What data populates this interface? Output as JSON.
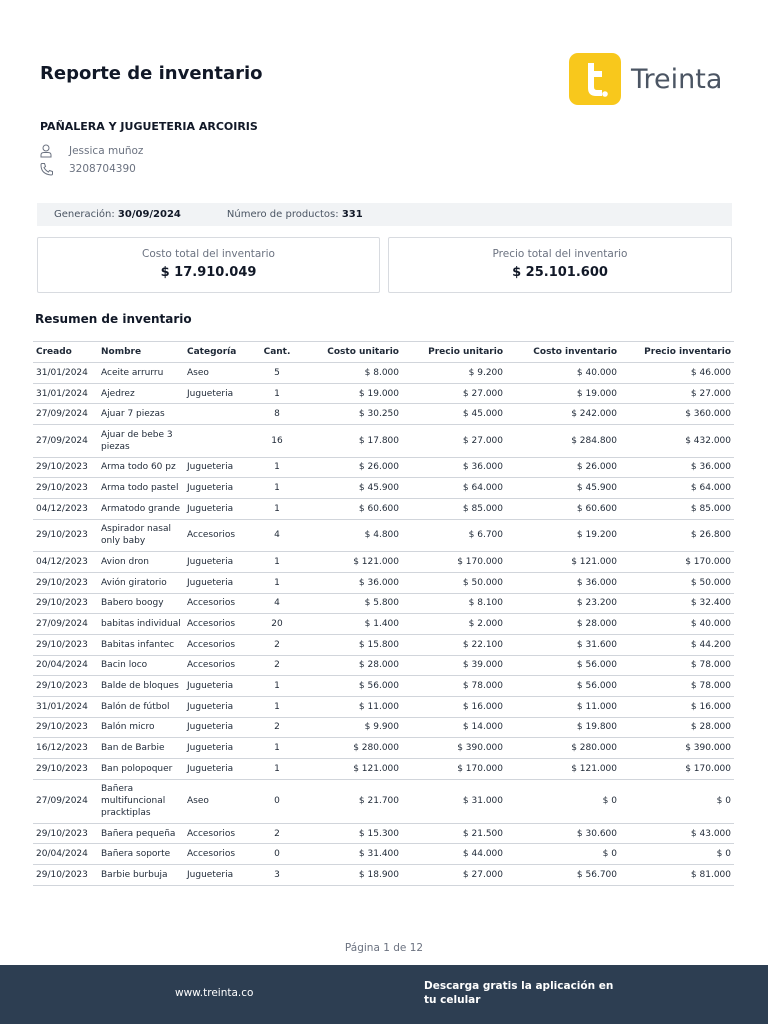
{
  "header": {
    "title": "Reporte de inventario",
    "logo_text": "Treinta",
    "brand_color": "#f8c81c"
  },
  "store": {
    "name": "PAÑALERA Y JUGUETERIA ARCOIRIS",
    "owner": "Jessica muñoz",
    "phone": "3208704390",
    "owner_icon": "user-icon",
    "phone_icon": "phone-icon"
  },
  "summary_bar": {
    "generation_label": "Generación:",
    "generation_value": "30/09/2024",
    "products_label": "Número de productos:",
    "products_value": "331"
  },
  "cards": {
    "cost_label": "Costo total del inventario",
    "cost_value": "$ 17.910.049",
    "price_label": "Precio total del inventario",
    "price_value": "$ 25.101.600"
  },
  "section_title": "Resumen de inventario",
  "table": {
    "headers": [
      "Creado",
      "Nombre",
      "Categoría",
      "Cant.",
      "Costo unitario",
      "Precio unitario",
      "Costo inventario",
      "Precio inventario"
    ],
    "rows": [
      [
        "31/01/2024",
        "Aceite arrurru",
        "Aseo",
        "5",
        "$ 8.000",
        "$ 9.200",
        "$ 40.000",
        "$ 46.000"
      ],
      [
        "31/01/2024",
        "Ajedrez",
        "Jugueteria",
        "1",
        "$ 19.000",
        "$ 27.000",
        "$ 19.000",
        "$ 27.000"
      ],
      [
        "27/09/2024",
        "Ajuar 7 piezas",
        "",
        "8",
        "$ 30.250",
        "$ 45.000",
        "$ 242.000",
        "$ 360.000"
      ],
      [
        "27/09/2024",
        "Ajuar de bebe 3 piezas",
        "",
        "16",
        "$ 17.800",
        "$ 27.000",
        "$ 284.800",
        "$ 432.000"
      ],
      [
        "29/10/2023",
        "Arma todo 60 pz",
        "Jugueteria",
        "1",
        "$ 26.000",
        "$ 36.000",
        "$ 26.000",
        "$ 36.000"
      ],
      [
        "29/10/2023",
        "Arma todo pastel",
        "Jugueteria",
        "1",
        "$ 45.900",
        "$ 64.000",
        "$ 45.900",
        "$ 64.000"
      ],
      [
        "04/12/2023",
        "Armatodo grande",
        "Jugueteria",
        "1",
        "$ 60.600",
        "$ 85.000",
        "$ 60.600",
        "$ 85.000"
      ],
      [
        "29/10/2023",
        "Aspirador nasal only baby",
        "Accesorios",
        "4",
        "$ 4.800",
        "$ 6.700",
        "$ 19.200",
        "$ 26.800"
      ],
      [
        "04/12/2023",
        "Avion dron",
        "Jugueteria",
        "1",
        "$ 121.000",
        "$ 170.000",
        "$ 121.000",
        "$ 170.000"
      ],
      [
        "29/10/2023",
        "Avión giratorio",
        "Jugueteria",
        "1",
        "$ 36.000",
        "$ 50.000",
        "$ 36.000",
        "$ 50.000"
      ],
      [
        "29/10/2023",
        "Babero boogy",
        "Accesorios",
        "4",
        "$ 5.800",
        "$ 8.100",
        "$ 23.200",
        "$ 32.400"
      ],
      [
        "27/09/2024",
        "babitas individual",
        "Accesorios",
        "20",
        "$ 1.400",
        "$ 2.000",
        "$ 28.000",
        "$ 40.000"
      ],
      [
        "29/10/2023",
        "Babitas infantec",
        "Accesorios",
        "2",
        "$ 15.800",
        "$ 22.100",
        "$ 31.600",
        "$ 44.200"
      ],
      [
        "20/04/2024",
        "Bacin loco",
        "Accesorios",
        "2",
        "$ 28.000",
        "$ 39.000",
        "$ 56.000",
        "$ 78.000"
      ],
      [
        "29/10/2023",
        "Balde de bloques",
        "Jugueteria",
        "1",
        "$ 56.000",
        "$ 78.000",
        "$ 56.000",
        "$ 78.000"
      ],
      [
        "31/01/2024",
        "Balón de fútbol",
        "Jugueteria",
        "1",
        "$ 11.000",
        "$ 16.000",
        "$ 11.000",
        "$ 16.000"
      ],
      [
        "29/10/2023",
        "Balón micro",
        "Jugueteria",
        "2",
        "$ 9.900",
        "$ 14.000",
        "$ 19.800",
        "$ 28.000"
      ],
      [
        "16/12/2023",
        "Ban de Barbie",
        "Jugueteria",
        "1",
        "$ 280.000",
        "$ 390.000",
        "$ 280.000",
        "$ 390.000"
      ],
      [
        "29/10/2023",
        "Ban polopoquer",
        "Jugueteria",
        "1",
        "$ 121.000",
        "$ 170.000",
        "$ 121.000",
        "$ 170.000"
      ],
      [
        "27/09/2024",
        "Bañera multifuncional pracktiplas",
        "Aseo",
        "0",
        "$ 21.700",
        "$ 31.000",
        "$ 0",
        "$ 0"
      ],
      [
        "29/10/2023",
        "Bañera pequeña",
        "Accesorios",
        "2",
        "$ 15.300",
        "$ 21.500",
        "$ 30.600",
        "$ 43.000"
      ],
      [
        "20/04/2024",
        "Bañera soporte",
        "Accesorios",
        "0",
        "$ 31.400",
        "$ 44.000",
        "$ 0",
        "$ 0"
      ],
      [
        "29/10/2023",
        "Barbie burbuja",
        "Jugueteria",
        "3",
        "$ 18.900",
        "$ 27.000",
        "$ 56.700",
        "$ 81.000"
      ]
    ]
  },
  "page_indicator": "Página 1 de 12",
  "footer": {
    "website": "www.treinta.co",
    "download_text": "Descarga gratis la aplicación en tu celular"
  }
}
